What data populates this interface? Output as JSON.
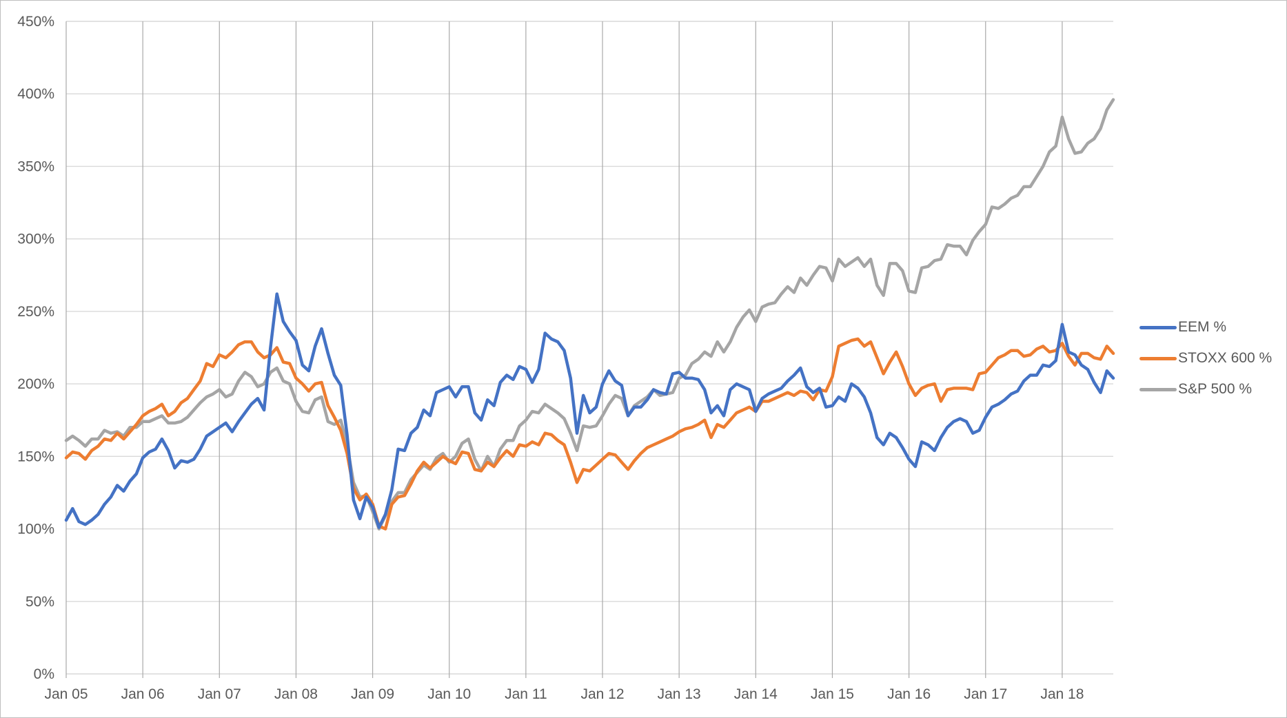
{
  "chart_data": {
    "type": "line",
    "title": "",
    "xlabel": "",
    "ylabel": "",
    "ylim": [
      0,
      450
    ],
    "y_step": 50,
    "y_tick_labels": [
      "0%",
      "50%",
      "100%",
      "150%",
      "200%",
      "250%",
      "300%",
      "350%",
      "400%",
      "450%"
    ],
    "x_tick_labels": [
      "Jan 05",
      "Jan 06",
      "Jan 07",
      "Jan 08",
      "Jan 09",
      "Jan 10",
      "Jan 11",
      "Jan 12",
      "Jan 13",
      "Jan 14",
      "Jan 15",
      "Jan 16",
      "Jan 17",
      "Jan 18"
    ],
    "x_interval": "monthly",
    "grid": true,
    "legend_position": "right",
    "months": [
      "2005-01",
      "2005-02",
      "2005-03",
      "2005-04",
      "2005-05",
      "2005-06",
      "2005-07",
      "2005-08",
      "2005-09",
      "2005-10",
      "2005-11",
      "2005-12",
      "2006-01",
      "2006-02",
      "2006-03",
      "2006-04",
      "2006-05",
      "2006-06",
      "2006-07",
      "2006-08",
      "2006-09",
      "2006-10",
      "2006-11",
      "2006-12",
      "2007-01",
      "2007-02",
      "2007-03",
      "2007-04",
      "2007-05",
      "2007-06",
      "2007-07",
      "2007-08",
      "2007-09",
      "2007-10",
      "2007-11",
      "2007-12",
      "2008-01",
      "2008-02",
      "2008-03",
      "2008-04",
      "2008-05",
      "2008-06",
      "2008-07",
      "2008-08",
      "2008-09",
      "2008-10",
      "2008-11",
      "2008-12",
      "2009-01",
      "2009-02",
      "2009-03",
      "2009-04",
      "2009-05",
      "2009-06",
      "2009-07",
      "2009-08",
      "2009-09",
      "2009-10",
      "2009-11",
      "2009-12",
      "2010-01",
      "2010-02",
      "2010-03",
      "2010-04",
      "2010-05",
      "2010-06",
      "2010-07",
      "2010-08",
      "2010-09",
      "2010-10",
      "2010-11",
      "2010-12",
      "2011-01",
      "2011-02",
      "2011-03",
      "2011-04",
      "2011-05",
      "2011-06",
      "2011-07",
      "2011-08",
      "2011-09",
      "2011-10",
      "2011-11",
      "2011-12",
      "2012-01",
      "2012-02",
      "2012-03",
      "2012-04",
      "2012-05",
      "2012-06",
      "2012-07",
      "2012-08",
      "2012-09",
      "2012-10",
      "2012-11",
      "2012-12",
      "2013-01",
      "2013-02",
      "2013-03",
      "2013-04",
      "2013-05",
      "2013-06",
      "2013-07",
      "2013-08",
      "2013-09",
      "2013-10",
      "2013-11",
      "2013-12",
      "2014-01",
      "2014-02",
      "2014-03",
      "2014-04",
      "2014-05",
      "2014-06",
      "2014-07",
      "2014-08",
      "2014-09",
      "2014-10",
      "2014-11",
      "2014-12",
      "2015-01",
      "2015-02",
      "2015-03",
      "2015-04",
      "2015-05",
      "2015-06",
      "2015-07",
      "2015-08",
      "2015-09",
      "2015-10",
      "2015-11",
      "2015-12",
      "2016-01",
      "2016-02",
      "2016-03",
      "2016-04",
      "2016-05",
      "2016-06",
      "2016-07",
      "2016-08",
      "2016-09",
      "2016-10",
      "2016-11",
      "2016-12",
      "2017-01",
      "2017-02",
      "2017-03",
      "2017-04",
      "2017-05",
      "2017-06",
      "2017-07",
      "2017-08",
      "2017-09",
      "2017-10",
      "2017-11",
      "2017-12",
      "2018-01",
      "2018-02",
      "2018-03",
      "2018-04",
      "2018-05",
      "2018-06",
      "2018-07",
      "2018-08",
      "2018-09"
    ],
    "series": [
      {
        "name": "EEM %",
        "color": "#4472C4",
        "values": [
          106,
          114,
          105,
          103,
          106,
          110,
          117,
          122,
          130,
          126,
          133,
          138,
          149,
          153,
          155,
          162,
          154,
          142,
          147,
          146,
          148,
          155,
          164,
          167,
          170,
          173,
          167,
          174,
          180,
          186,
          190,
          182,
          225,
          262,
          243,
          236,
          230,
          213,
          209,
          226,
          238,
          221,
          206,
          199,
          165,
          120,
          107,
          122,
          115,
          101,
          110,
          127,
          155,
          154,
          166,
          170,
          182,
          178,
          194,
          196,
          198,
          191,
          198,
          198,
          180,
          175,
          189,
          185,
          201,
          206,
          203,
          212,
          210,
          201,
          210,
          235,
          231,
          229,
          223,
          204,
          166,
          192,
          180,
          184,
          200,
          209,
          202,
          199,
          178,
          184,
          184,
          189,
          196,
          194,
          193,
          207,
          208,
          204,
          204,
          203,
          196,
          180,
          185,
          178,
          196,
          200,
          198,
          196,
          181,
          190,
          193,
          195,
          197,
          202,
          206,
          211,
          198,
          194,
          197,
          184,
          185,
          191,
          188,
          200,
          197,
          191,
          180,
          163,
          158,
          166,
          163,
          156,
          148,
          143,
          160,
          158,
          154,
          163,
          170,
          174,
          176,
          174,
          166,
          168,
          177,
          184,
          186,
          189,
          193,
          195,
          202,
          206,
          206,
          213,
          212,
          216,
          241,
          222,
          220,
          213,
          210,
          201,
          194,
          209,
          204
        ]
      },
      {
        "name": "STOXX 600 %",
        "color": "#ED7D31",
        "values": [
          149,
          153,
          152,
          148,
          154,
          157,
          162,
          161,
          166,
          162,
          167,
          172,
          178,
          181,
          183,
          186,
          178,
          181,
          187,
          190,
          196,
          202,
          214,
          212,
          220,
          218,
          222,
          227,
          229,
          229,
          222,
          218,
          220,
          225,
          215,
          214,
          204,
          200,
          195,
          200,
          201,
          185,
          177,
          168,
          152,
          128,
          120,
          124,
          117,
          102,
          100,
          117,
          122,
          123,
          131,
          140,
          146,
          142,
          146,
          150,
          147,
          145,
          153,
          152,
          141,
          140,
          146,
          143,
          149,
          154,
          150,
          158,
          157,
          160,
          158,
          166,
          165,
          161,
          158,
          146,
          132,
          141,
          140,
          144,
          148,
          152,
          151,
          146,
          141,
          147,
          152,
          156,
          158,
          160,
          162,
          164,
          167,
          169,
          170,
          172,
          175,
          163,
          172,
          170,
          175,
          180,
          182,
          184,
          181,
          188,
          188,
          190,
          192,
          194,
          192,
          195,
          194,
          189,
          196,
          195,
          205,
          226,
          228,
          230,
          231,
          226,
          229,
          218,
          207,
          215,
          222,
          212,
          200,
          192,
          197,
          199,
          200,
          188,
          196,
          197,
          197,
          197,
          196,
          207,
          208,
          213,
          218,
          220,
          223,
          223,
          219,
          220,
          224,
          226,
          222,
          223,
          228,
          219,
          213,
          221,
          221,
          218,
          217,
          226,
          221
        ]
      },
      {
        "name": "S&P 500 %",
        "color": "#A5A5A5",
        "values": [
          161,
          164,
          161,
          157,
          162,
          162,
          168,
          166,
          167,
          164,
          170,
          170,
          174,
          174,
          176,
          178,
          173,
          173,
          174,
          177,
          182,
          187,
          191,
          193,
          196,
          191,
          193,
          202,
          208,
          205,
          198,
          200,
          208,
          211,
          202,
          200,
          188,
          181,
          180,
          189,
          191,
          174,
          172,
          175,
          158,
          132,
          122,
          123,
          112,
          100,
          109,
          119,
          125,
          125,
          134,
          139,
          144,
          141,
          149,
          152,
          146,
          150,
          159,
          162,
          148,
          140,
          150,
          143,
          155,
          161,
          161,
          171,
          175,
          181,
          180,
          186,
          183,
          180,
          176,
          166,
          154,
          171,
          170,
          171,
          178,
          186,
          192,
          190,
          178,
          185,
          188,
          191,
          196,
          192,
          193,
          194,
          204,
          206,
          214,
          217,
          222,
          219,
          229,
          222,
          229,
          239,
          246,
          251,
          243,
          253,
          255,
          256,
          262,
          267,
          263,
          273,
          268,
          275,
          281,
          280,
          271,
          286,
          281,
          284,
          287,
          281,
          286,
          268,
          261,
          283,
          283,
          278,
          264,
          263,
          280,
          281,
          285,
          286,
          296,
          295,
          295,
          289,
          299,
          305,
          310,
          322,
          321,
          324,
          328,
          330,
          336,
          336,
          343,
          350,
          360,
          364,
          384,
          369,
          359,
          360,
          366,
          369,
          376,
          389,
          396
        ]
      }
    ]
  },
  "legend": {
    "items": [
      {
        "label": "EEM %",
        "color": "#4472C4"
      },
      {
        "label": "STOXX 600 %",
        "color": "#ED7D31"
      },
      {
        "label": "S&P 500 %",
        "color": "#A5A5A5"
      }
    ]
  },
  "colors": {
    "background": "#ffffff",
    "border": "#bfbfbf",
    "h_gridline": "#d9d9d9",
    "v_gridline": "#a9a9a9",
    "axis_line": "#d9d9d9",
    "axis_text": "#595959"
  }
}
